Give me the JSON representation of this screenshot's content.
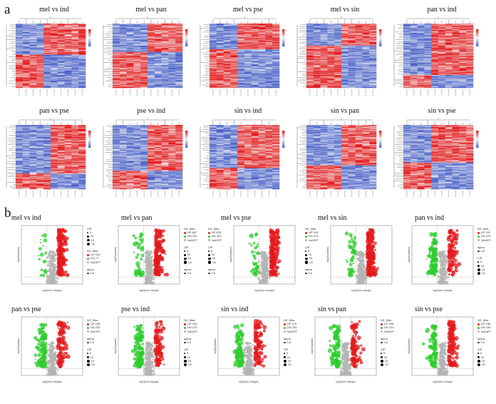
{
  "figure": {
    "panel_a_letter": "a",
    "panel_b_letter": "b"
  },
  "heatmaps": [
    {
      "title": "mel vs ind"
    },
    {
      "title": "mel vs pan"
    },
    {
      "title": "mel vs pse"
    },
    {
      "title": "mel vs sin"
    },
    {
      "title": "pan vs ind"
    },
    {
      "title": "pan vs pse"
    },
    {
      "title": "pse vs ind"
    },
    {
      "title": "sin vs ind"
    },
    {
      "title": "sin vs pan"
    },
    {
      "title": "sin vs pse"
    }
  ],
  "volcanoes": [
    {
      "title": "mel vs ind",
      "deg_title": "DE_filtra",
      "up": "UP 916",
      "down": "DN 77",
      "nodiff": "NoDIFF",
      "vip_title": "VIP",
      "alpha_title": "alpha",
      "alpha_val": "0.6",
      "vip_vals": [
        "5",
        "10",
        "15",
        "20"
      ],
      "xlabel": "log2(fold change)",
      "ylabel": "-log10(pvalue)"
    },
    {
      "title": "mel vs pan",
      "deg_title": "DE_filtra",
      "up": "UP 857",
      "down": "DN 187",
      "nodiff": "NoDIFF",
      "vip_title": "VIP",
      "alpha_title": "alpha",
      "alpha_val": "0.6",
      "vip_vals": [
        "5",
        "10",
        "15",
        "20"
      ],
      "xlabel": "log2(fold change)",
      "ylabel": "-log10(pvalue)"
    },
    {
      "title": "mel vs pse",
      "deg_title": "DE_filtra",
      "up": "UP 878",
      "down": "DN 180",
      "nodiff": "NoDIFF",
      "vip_title": "VIP",
      "alpha_title": "alpha",
      "alpha_val": "0.6",
      "vip_vals": [
        "5",
        "10",
        "15",
        "20"
      ],
      "xlabel": "log2(fold change)",
      "ylabel": "-log10(pvalue)"
    },
    {
      "title": "mel vs sin",
      "deg_title": "DE_filtra",
      "up": "UP 913",
      "down": "DN 223",
      "nodiff": "NoDIFF",
      "vip_title": "VIP",
      "alpha_title": "alpha",
      "alpha_val": "0.6",
      "vip_vals": [
        "5",
        "10",
        "15",
        "20"
      ],
      "xlabel": "log2(fold change)",
      "ylabel": "-log10(pvalue)"
    },
    {
      "title": "pan vs ind",
      "deg_title": "DE_filtra",
      "up": "UP 222",
      "down": "DN 223",
      "nodiff": "NoDIFF",
      "vip_title": "VIP",
      "alpha_title": "alpha",
      "alpha_val": "0.6",
      "vip_vals": [
        "5",
        "10",
        "15",
        "20"
      ],
      "xlabel": "log2(fold change)",
      "ylabel": "-log10(pvalue)"
    },
    {
      "title": "pan vs pse",
      "deg_title": "DE_filtra",
      "up": "UP 248",
      "down": "DN 230",
      "nodiff": "NoDIFF",
      "vip_title": "VIP",
      "alpha_title": "alpha",
      "alpha_val": "0.6",
      "vip_vals": [
        "5",
        "10",
        "15",
        "20"
      ],
      "xlabel": "log2(fold change)",
      "ylabel": "-log10(pvalue)"
    },
    {
      "title": "pse vs ind",
      "deg_title": "DE_filtra",
      "up": "UP 234",
      "down": "DN 276",
      "nodiff": "NoDIFF",
      "vip_title": "VIP",
      "alpha_title": "alpha",
      "alpha_val": "0.6",
      "vip_vals": [
        "5",
        "10",
        "15",
        "20"
      ],
      "xlabel": "log2(fold change)",
      "ylabel": "-log10(pvalue)"
    },
    {
      "title": "sin vs ind",
      "deg_title": "DE_filtra",
      "up": "UP 270",
      "down": "DN 253",
      "nodiff": "NoDIFF",
      "vip_title": "VIP",
      "alpha_title": "alpha",
      "alpha_val": "0.6",
      "vip_vals": [
        "5",
        "10",
        "15",
        "20"
      ],
      "xlabel": "log2(fold change)",
      "ylabel": "-log10(pvalue)"
    },
    {
      "title": "sin vs pan",
      "deg_title": "DE_filtra",
      "up": "UP 208",
      "down": "DN 223",
      "nodiff": "NoDIFF",
      "vip_title": "VIP",
      "alpha_title": "alpha",
      "alpha_val": "0.6",
      "vip_vals": [
        "5",
        "10",
        "15",
        "20"
      ],
      "xlabel": "log2(fold change)",
      "ylabel": "-log10(pvalue)"
    },
    {
      "title": "sin vs pse",
      "deg_title": "DE_filtra",
      "up": "UP 236",
      "down": "DN 180",
      "nodiff": "NoDIFF",
      "vip_title": "VIP",
      "alpha_title": "alpha",
      "alpha_val": "0.6",
      "vip_vals": [
        "5",
        "10",
        "15",
        "20"
      ],
      "xlabel": "log2(fold change)",
      "ylabel": "-log10(pvalue)"
    }
  ],
  "colors": {
    "heat_high": "#e31a1c",
    "heat_mid": "#f4f4f4",
    "heat_low": "#4a63c9",
    "up": "#e41a1c",
    "down": "#2ecc2e",
    "nodiff": "#b4b4b4",
    "threshold_line": "#9a9a9a"
  },
  "chart_data": [
    {
      "type": "heatmap",
      "title": "mel vs ind"
    },
    {
      "type": "heatmap",
      "title": "mel vs pan"
    },
    {
      "type": "heatmap",
      "title": "mel vs pse"
    },
    {
      "type": "heatmap",
      "title": "mel vs sin"
    },
    {
      "type": "heatmap",
      "title": "pan vs ind"
    },
    {
      "type": "heatmap",
      "title": "pan vs pse"
    },
    {
      "type": "heatmap",
      "title": "pse vs ind"
    },
    {
      "type": "heatmap",
      "title": "sin vs ind"
    },
    {
      "type": "heatmap",
      "title": "sin vs pan"
    },
    {
      "type": "heatmap",
      "title": "sin vs pse"
    },
    {
      "type": "scatter",
      "title": "mel vs ind",
      "xlabel": "log2(fold change)",
      "ylabel": "-log10(pvalue)",
      "series": [
        {
          "name": "UP 916"
        },
        {
          "name": "DN 77"
        },
        {
          "name": "NoDIFF"
        }
      ]
    },
    {
      "type": "scatter",
      "title": "mel vs pan",
      "xlabel": "log2(fold change)",
      "ylabel": "-log10(pvalue)",
      "series": [
        {
          "name": "UP 857"
        },
        {
          "name": "DN 187"
        },
        {
          "name": "NoDIFF"
        }
      ]
    },
    {
      "type": "scatter",
      "title": "mel vs pse",
      "xlabel": "log2(fold change)",
      "ylabel": "-log10(pvalue)",
      "series": [
        {
          "name": "UP 878"
        },
        {
          "name": "DN 180"
        },
        {
          "name": "NoDIFF"
        }
      ]
    },
    {
      "type": "scatter",
      "title": "mel vs sin",
      "xlabel": "log2(fold change)",
      "ylabel": "-log10(pvalue)",
      "series": [
        {
          "name": "UP 913"
        },
        {
          "name": "DN 223"
        },
        {
          "name": "NoDIFF"
        }
      ]
    },
    {
      "type": "scatter",
      "title": "pan vs ind",
      "xlabel": "log2(fold change)",
      "ylabel": "-log10(pvalue)",
      "series": [
        {
          "name": "UP 222"
        },
        {
          "name": "DN 223"
        },
        {
          "name": "NoDIFF"
        }
      ]
    },
    {
      "type": "scatter",
      "title": "pan vs pse",
      "xlabel": "log2(fold change)",
      "ylabel": "-log10(pvalue)",
      "series": [
        {
          "name": "UP 248"
        },
        {
          "name": "DN 230"
        },
        {
          "name": "NoDIFF"
        }
      ]
    },
    {
      "type": "scatter",
      "title": "pse vs ind",
      "xlabel": "log2(fold change)",
      "ylabel": "-log10(pvalue)",
      "series": [
        {
          "name": "UP 234"
        },
        {
          "name": "DN 276"
        },
        {
          "name": "NoDIFF"
        }
      ]
    },
    {
      "type": "scatter",
      "title": "sin vs ind",
      "xlabel": "log2(fold change)",
      "ylabel": "-log10(pvalue)",
      "series": [
        {
          "name": "UP 270"
        },
        {
          "name": "DN 253"
        },
        {
          "name": "NoDIFF"
        }
      ]
    },
    {
      "type": "scatter",
      "title": "sin vs pan",
      "xlabel": "log2(fold change)",
      "ylabel": "-log10(pvalue)",
      "series": [
        {
          "name": "UP 208"
        },
        {
          "name": "DN 223"
        },
        {
          "name": "NoDIFF"
        }
      ]
    },
    {
      "type": "scatter",
      "title": "sin vs pse",
      "xlabel": "log2(fold change)",
      "ylabel": "-log10(pvalue)",
      "series": [
        {
          "name": "UP 236"
        },
        {
          "name": "DN 180"
        },
        {
          "name": "NoDIFF"
        }
      ]
    }
  ]
}
